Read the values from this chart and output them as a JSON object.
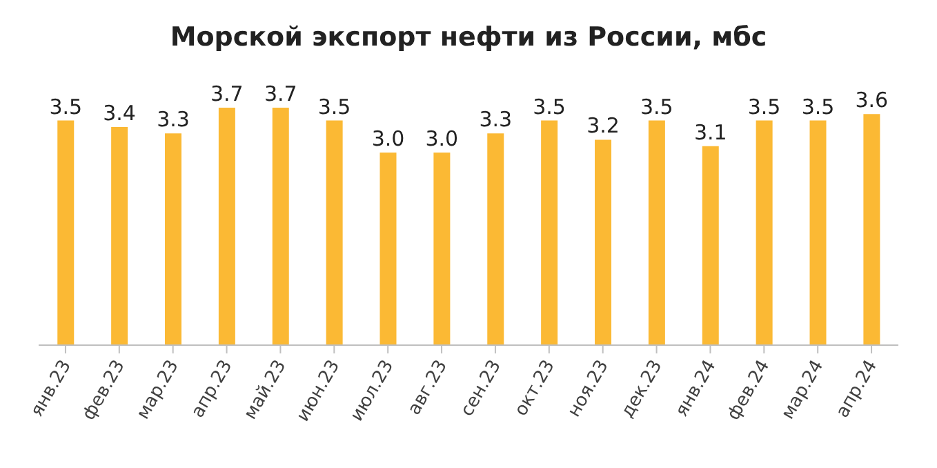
{
  "chart_data": {
    "type": "bar",
    "title": "Морской экспорт нефти из России, мбс",
    "categories": [
      "янв.23",
      "фев.23",
      "мар.23",
      "апр.23",
      "май.23",
      "июн.23",
      "июл.23",
      "авг.23",
      "сен.23",
      "окт.23",
      "ноя.23",
      "дек.23",
      "янв.24",
      "фев.24",
      "мар.24",
      "апр.24"
    ],
    "values": [
      3.5,
      3.4,
      3.3,
      3.7,
      3.7,
      3.5,
      3.0,
      3.0,
      3.3,
      3.5,
      3.2,
      3.5,
      3.1,
      3.5,
      3.5,
      3.6
    ],
    "value_labels": [
      "3.5",
      "3.4",
      "3.3",
      "3.7",
      "3.7",
      "3.5",
      "3.0",
      "3.0",
      "3.3",
      "3.5",
      "3.2",
      "3.5",
      "3.1",
      "3.5",
      "3.5",
      "3.6"
    ],
    "color": "#fbb934",
    "grid": false,
    "legend": false
  }
}
